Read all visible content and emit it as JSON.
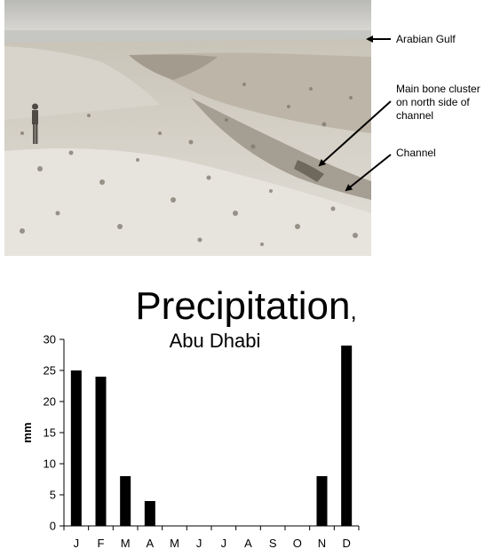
{
  "photo": {
    "annotations": [
      {
        "id": "gulf",
        "text": "Arabian Gulf"
      },
      {
        "id": "bone",
        "text": "Main bone cluster on north side of channel"
      },
      {
        "id": "channel",
        "text": "Channel"
      }
    ]
  },
  "chart_data": {
    "type": "bar",
    "title": "Precipitation",
    "title_suffix": ",",
    "subtitle": "Abu Dhabi",
    "xlabel": "",
    "ylabel": "mm",
    "categories": [
      "J",
      "F",
      "M",
      "A",
      "M",
      "J",
      "J",
      "A",
      "S",
      "O",
      "N",
      "D"
    ],
    "values": [
      25,
      24,
      8,
      4,
      0,
      0,
      0,
      0,
      0,
      0,
      8,
      29
    ],
    "ylim": [
      0,
      30
    ],
    "yticks": [
      0,
      5,
      10,
      15,
      20,
      25,
      30
    ],
    "bar_color": "#000000",
    "grid": false,
    "legend": "none"
  }
}
